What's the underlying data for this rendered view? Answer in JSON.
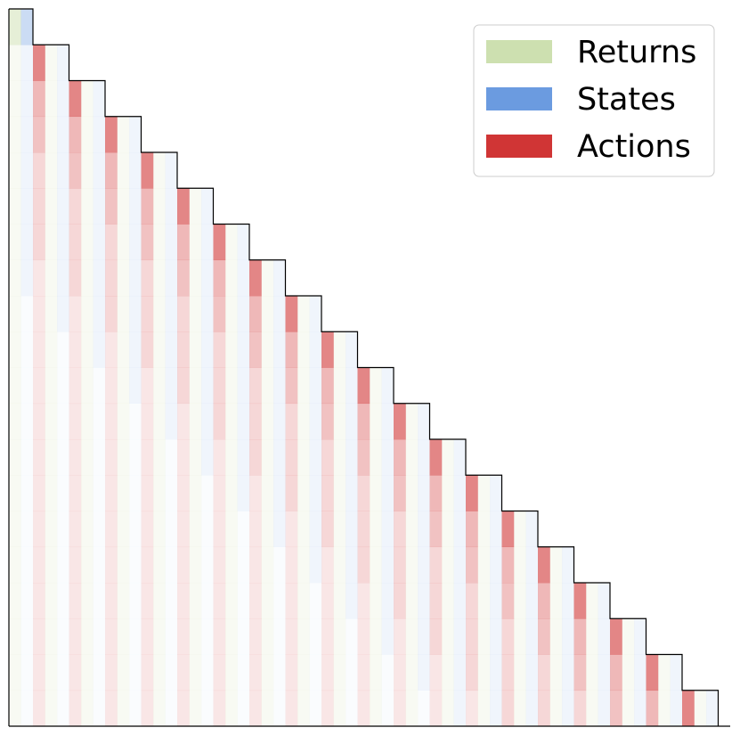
{
  "chart_data": {
    "type": "heatmap",
    "series": [
      {
        "name": "Returns",
        "color": "#cde0b0"
      },
      {
        "name": "States",
        "color": "#6b9be0"
      },
      {
        "name": "Actions",
        "color": "#d03535"
      }
    ],
    "legend": "upper right",
    "values": [
      [
        0.5,
        0.35
      ],
      [
        0.15,
        0.1,
        0.6,
        0.15,
        0.1
      ],
      [
        0.15,
        0.1,
        0.35,
        0.15,
        0.1,
        0.6,
        0.15,
        0.1
      ],
      [
        0.15,
        0.1,
        0.3,
        0.15,
        0.1,
        0.35,
        0.15,
        0.1,
        0.6,
        0.15,
        0.1
      ],
      [
        0.15,
        0.1,
        0.2,
        0.15,
        0.1,
        0.3,
        0.15,
        0.1,
        0.35,
        0.15,
        0.1,
        0.6,
        0.15,
        0.1
      ],
      [
        0.15,
        0.1,
        0.2,
        0.15,
        0.1,
        0.2,
        0.15,
        0.1,
        0.3,
        0.15,
        0.1,
        0.35,
        0.15,
        0.1,
        0.6,
        0.15,
        0.1
      ],
      [
        0.15,
        0.1,
        0.2,
        0.15,
        0.1,
        0.2,
        0.15,
        0.1,
        0.2,
        0.15,
        0.1,
        0.3,
        0.15,
        0.1,
        0.35,
        0.15,
        0.1,
        0.6,
        0.15,
        0.1
      ],
      [
        0.15,
        0.1,
        0.12,
        0.15,
        0.1,
        0.2,
        0.15,
        0.1,
        0.2,
        0.15,
        0.1,
        0.2,
        0.15,
        0.1,
        0.3,
        0.15,
        0.1,
        0.35,
        0.15,
        0.1,
        0.6,
        0.15,
        0.1
      ],
      [
        0.15,
        0.03,
        0.12,
        0.15,
        0.1,
        0.12,
        0.15,
        0.1,
        0.2,
        0.15,
        0.1,
        0.2,
        0.15,
        0.1,
        0.2,
        0.15,
        0.1,
        0.3,
        0.15,
        0.1,
        0.35,
        0.15,
        0.1,
        0.6,
        0.15,
        0.1
      ],
      [
        0.15,
        0.03,
        0.12,
        0.15,
        0.03,
        0.12,
        0.15,
        0.1,
        0.12,
        0.15,
        0.1,
        0.2,
        0.15,
        0.1,
        0.2,
        0.15,
        0.1,
        0.2,
        0.15,
        0.1,
        0.3,
        0.15,
        0.1,
        0.35,
        0.15,
        0.1,
        0.6,
        0.15,
        0.1
      ],
      [
        0.15,
        0.03,
        0.12,
        0.15,
        0.03,
        0.12,
        0.15,
        0.03,
        0.12,
        0.15,
        0.1,
        0.12,
        0.15,
        0.1,
        0.2,
        0.15,
        0.1,
        0.2,
        0.15,
        0.1,
        0.2,
        0.15,
        0.1,
        0.3,
        0.15,
        0.1,
        0.35,
        0.15,
        0.1,
        0.6,
        0.15,
        0.1
      ],
      [
        0.15,
        0.03,
        0.12,
        0.15,
        0.03,
        0.12,
        0.15,
        0.03,
        0.12,
        0.15,
        0.03,
        0.12,
        0.15,
        0.1,
        0.12,
        0.15,
        0.1,
        0.2,
        0.15,
        0.1,
        0.2,
        0.15,
        0.1,
        0.2,
        0.15,
        0.1,
        0.3,
        0.15,
        0.1,
        0.35,
        0.15,
        0.1,
        0.6,
        0.15,
        0.1
      ],
      [
        0.15,
        0.03,
        0.12,
        0.15,
        0.03,
        0.12,
        0.15,
        0.03,
        0.12,
        0.15,
        0.03,
        0.12,
        0.15,
        0.03,
        0.12,
        0.15,
        0.1,
        0.12,
        0.15,
        0.1,
        0.2,
        0.15,
        0.1,
        0.2,
        0.15,
        0.1,
        0.2,
        0.15,
        0.1,
        0.3,
        0.15,
        0.1,
        0.35,
        0.15,
        0.1,
        0.6,
        0.15,
        0.1
      ],
      [
        0.15,
        0.03,
        0.12,
        0.15,
        0.03,
        0.12,
        0.15,
        0.03,
        0.12,
        0.15,
        0.03,
        0.12,
        0.15,
        0.03,
        0.12,
        0.15,
        0.03,
        0.12,
        0.15,
        0.1,
        0.12,
        0.15,
        0.1,
        0.2,
        0.15,
        0.1,
        0.2,
        0.15,
        0.1,
        0.2,
        0.15,
        0.1,
        0.3,
        0.15,
        0.1,
        0.35,
        0.15,
        0.1,
        0.6,
        0.15,
        0.1
      ],
      [
        0.15,
        0.03,
        0.12,
        0.15,
        0.03,
        0.12,
        0.15,
        0.03,
        0.12,
        0.15,
        0.03,
        0.12,
        0.15,
        0.03,
        0.12,
        0.15,
        0.03,
        0.12,
        0.15,
        0.03,
        0.12,
        0.15,
        0.1,
        0.12,
        0.15,
        0.1,
        0.2,
        0.15,
        0.1,
        0.2,
        0.15,
        0.1,
        0.2,
        0.15,
        0.1,
        0.3,
        0.15,
        0.1,
        0.35,
        0.15,
        0.1,
        0.6,
        0.15,
        0.1
      ],
      [
        0.15,
        0.03,
        0.12,
        0.15,
        0.03,
        0.12,
        0.15,
        0.03,
        0.12,
        0.15,
        0.03,
        0.12,
        0.15,
        0.03,
        0.12,
        0.15,
        0.03,
        0.12,
        0.15,
        0.03,
        0.12,
        0.15,
        0.03,
        0.12,
        0.15,
        0.1,
        0.12,
        0.15,
        0.1,
        0.2,
        0.15,
        0.1,
        0.2,
        0.15,
        0.1,
        0.2,
        0.15,
        0.1,
        0.3,
        0.15,
        0.1,
        0.35,
        0.15,
        0.1,
        0.6,
        0.15,
        0.1
      ],
      [
        0.15,
        0.03,
        0.12,
        0.15,
        0.03,
        0.12,
        0.15,
        0.03,
        0.12,
        0.15,
        0.03,
        0.12,
        0.15,
        0.03,
        0.12,
        0.15,
        0.03,
        0.12,
        0.15,
        0.03,
        0.12,
        0.15,
        0.03,
        0.12,
        0.15,
        0.03,
        0.12,
        0.15,
        0.1,
        0.12,
        0.15,
        0.1,
        0.2,
        0.15,
        0.1,
        0.2,
        0.15,
        0.1,
        0.2,
        0.15,
        0.1,
        0.3,
        0.15,
        0.1,
        0.35,
        0.15,
        0.1,
        0.6,
        0.15,
        0.1
      ],
      [
        0.15,
        0.03,
        0.12,
        0.15,
        0.03,
        0.12,
        0.15,
        0.03,
        0.12,
        0.15,
        0.03,
        0.12,
        0.15,
        0.03,
        0.12,
        0.15,
        0.03,
        0.12,
        0.15,
        0.03,
        0.12,
        0.15,
        0.03,
        0.12,
        0.15,
        0.03,
        0.12,
        0.15,
        0.03,
        0.12,
        0.15,
        0.1,
        0.12,
        0.15,
        0.1,
        0.2,
        0.15,
        0.1,
        0.2,
        0.15,
        0.1,
        0.2,
        0.15,
        0.1,
        0.3,
        0.15,
        0.1,
        0.35,
        0.15,
        0.1,
        0.6,
        0.15,
        0.1
      ],
      [
        0.15,
        0.03,
        0.12,
        0.15,
        0.03,
        0.12,
        0.15,
        0.03,
        0.12,
        0.15,
        0.03,
        0.12,
        0.15,
        0.03,
        0.12,
        0.15,
        0.03,
        0.12,
        0.15,
        0.03,
        0.12,
        0.15,
        0.03,
        0.12,
        0.15,
        0.03,
        0.12,
        0.15,
        0.03,
        0.12,
        0.15,
        0.03,
        0.12,
        0.15,
        0.1,
        0.12,
        0.15,
        0.1,
        0.2,
        0.15,
        0.1,
        0.2,
        0.15,
        0.1,
        0.2,
        0.15,
        0.1,
        0.3,
        0.15,
        0.1,
        0.35,
        0.15,
        0.1,
        0.6,
        0.15,
        0.1
      ],
      [
        0.15,
        0.03,
        0.12,
        0.15,
        0.03,
        0.12,
        0.15,
        0.03,
        0.12,
        0.15,
        0.03,
        0.12,
        0.15,
        0.03,
        0.12,
        0.15,
        0.03,
        0.12,
        0.15,
        0.03,
        0.12,
        0.15,
        0.03,
        0.12,
        0.15,
        0.03,
        0.12,
        0.15,
        0.03,
        0.12,
        0.15,
        0.03,
        0.12,
        0.15,
        0.03,
        0.12,
        0.15,
        0.1,
        0.12,
        0.15,
        0.1,
        0.2,
        0.15,
        0.1,
        0.2,
        0.15,
        0.1,
        0.2,
        0.15,
        0.1,
        0.3,
        0.15,
        0.1,
        0.35,
        0.15,
        0.1,
        0.6,
        0.15,
        0.1
      ]
    ]
  }
}
